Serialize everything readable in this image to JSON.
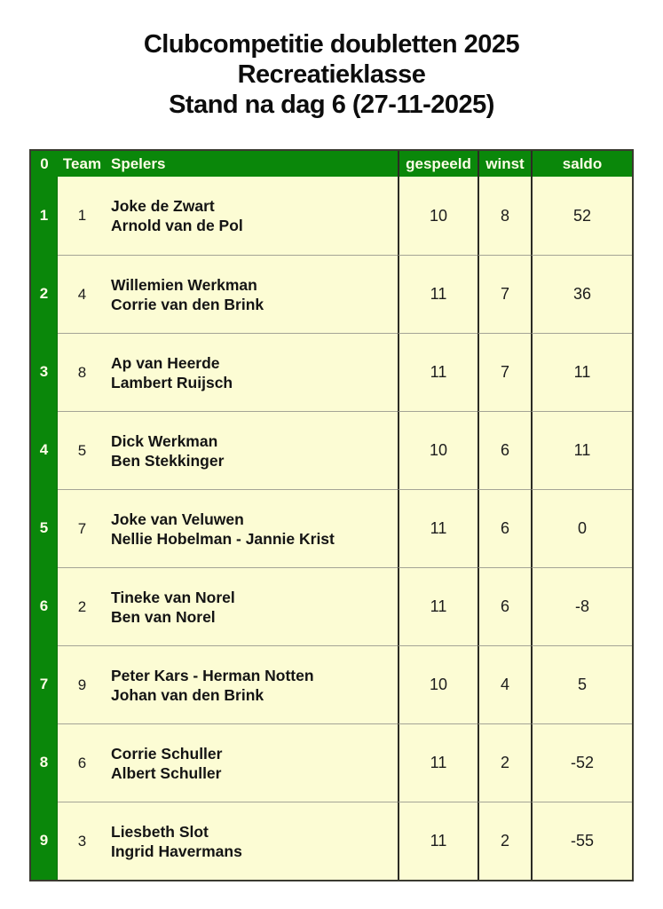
{
  "title": {
    "line1": "Clubcompetitie doubletten 2025",
    "line2": "Recreatieklasse",
    "line3": "Stand na dag 6 (27-11-2025)"
  },
  "colors": {
    "green": "#0a870a",
    "cream": "#fcfcd4",
    "header_text": "#fdfde6",
    "dark_border": "#2b2b24",
    "row_separator": "#a4a496"
  },
  "table": {
    "headers": {
      "rank": "0",
      "team": "Team",
      "players": "Spelers",
      "played": "gespeeld",
      "wins": "winst",
      "saldo": "saldo"
    },
    "rows": [
      {
        "rank": "1",
        "team": "1",
        "player1": "Joke de Zwart",
        "player2": "Arnold van de Pol",
        "played": "10",
        "wins": "8",
        "saldo": "52"
      },
      {
        "rank": "2",
        "team": "4",
        "player1": "Willemien Werkman",
        "player2": "Corrie van den Brink",
        "played": "11",
        "wins": "7",
        "saldo": "36"
      },
      {
        "rank": "3",
        "team": "8",
        "player1": "Ap van Heerde",
        "player2": "Lambert Ruijsch",
        "played": "11",
        "wins": "7",
        "saldo": "11"
      },
      {
        "rank": "4",
        "team": "5",
        "player1": "Dick Werkman",
        "player2": "Ben Stekkinger",
        "played": "10",
        "wins": "6",
        "saldo": "11"
      },
      {
        "rank": "5",
        "team": "7",
        "player1": "Joke van Veluwen",
        "player2": "Nellie Hobelman - Jannie Krist",
        "played": "11",
        "wins": "6",
        "saldo": "0"
      },
      {
        "rank": "6",
        "team": "2",
        "player1": "Tineke van Norel",
        "player2": "Ben van Norel",
        "played": "11",
        "wins": "6",
        "saldo": "-8"
      },
      {
        "rank": "7",
        "team": "9",
        "player1": "Peter Kars - Herman Notten",
        "player2": "Johan van den Brink",
        "played": "10",
        "wins": "4",
        "saldo": "5"
      },
      {
        "rank": "8",
        "team": "6",
        "player1": "Corrie Schuller",
        "player2": "Albert Schuller",
        "played": "11",
        "wins": "2",
        "saldo": "-52"
      },
      {
        "rank": "9",
        "team": "3",
        "player1": "Liesbeth Slot",
        "player2": "Ingrid Havermans",
        "played": "11",
        "wins": "2",
        "saldo": "-55"
      }
    ]
  }
}
